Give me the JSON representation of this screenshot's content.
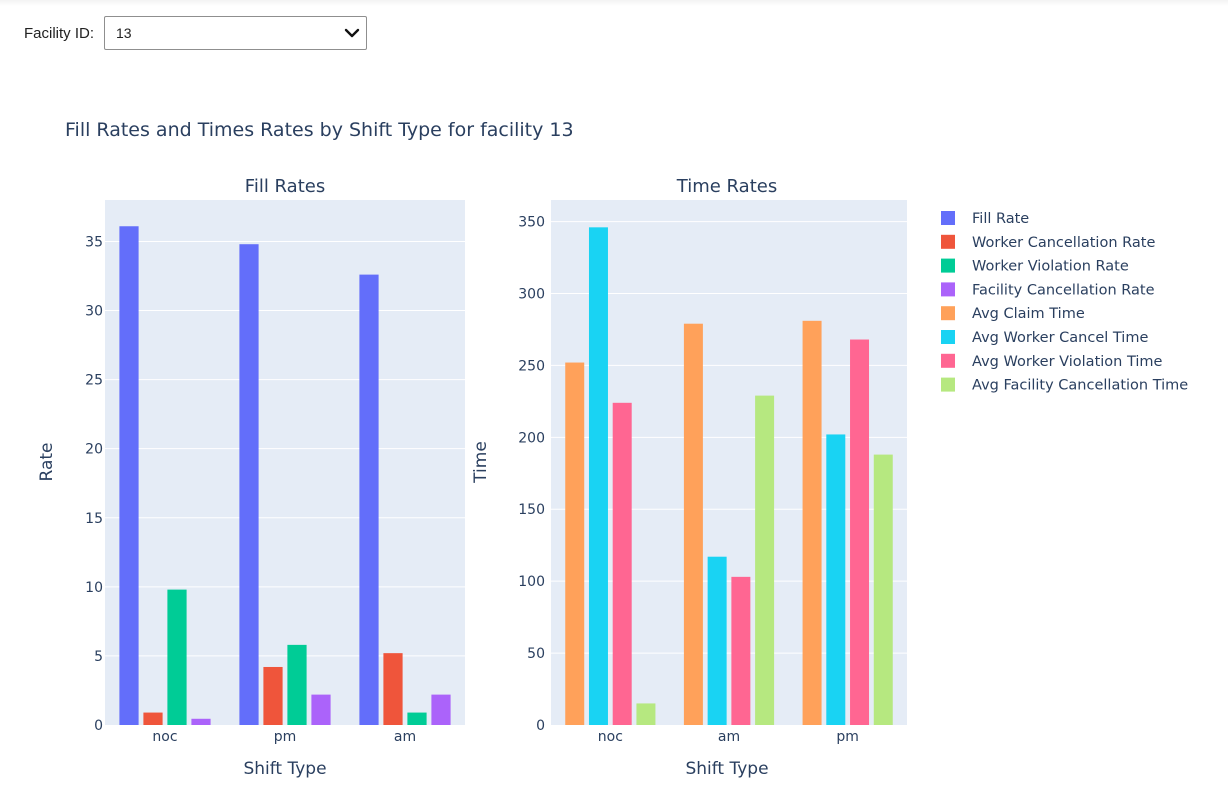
{
  "facility_select": {
    "label": "Facility ID:",
    "value": "13"
  },
  "chart_title": "Fill Rates and Times Rates by Shift Type for facility 13",
  "colors": {
    "Fill Rate": "#636efa",
    "Worker Cancellation Rate": "#EF553B",
    "Worker Violation Rate": "#00cc96",
    "Facility Cancellation Rate": "#ab63fa",
    "Avg Claim Time": "#FFA15A",
    "Avg Worker Cancel Time": "#19d3f3",
    "Avg Worker Violation Time": "#FF6692",
    "Avg Facility Cancellation Time": "#B6E880"
  },
  "legend": [
    "Fill Rate",
    "Worker Cancellation Rate",
    "Worker Violation Rate",
    "Facility Cancellation Rate",
    "Avg Claim Time",
    "Avg Worker Cancel Time",
    "Avg Worker Violation Time",
    "Avg Facility Cancellation Time"
  ],
  "chart_data": [
    {
      "type": "bar",
      "title": "Fill Rates",
      "xlabel": "Shift Type",
      "ylabel": "Rate",
      "categories": [
        "noc",
        "pm",
        "am"
      ],
      "ylim": [
        0,
        38
      ],
      "yticks": [
        0,
        5,
        10,
        15,
        20,
        25,
        30,
        35
      ],
      "series": [
        {
          "name": "Fill Rate",
          "values": [
            36.1,
            34.8,
            32.6
          ]
        },
        {
          "name": "Worker Cancellation Rate",
          "values": [
            0.9,
            4.2,
            5.2
          ]
        },
        {
          "name": "Worker Violation Rate",
          "values": [
            9.8,
            5.8,
            0.9
          ]
        },
        {
          "name": "Facility Cancellation Rate",
          "values": [
            0.45,
            2.2,
            2.2
          ]
        }
      ]
    },
    {
      "type": "bar",
      "title": "Time Rates",
      "xlabel": "Shift Type",
      "ylabel": "Time",
      "categories": [
        "noc",
        "am",
        "pm"
      ],
      "ylim": [
        0,
        365
      ],
      "yticks": [
        0,
        50,
        100,
        150,
        200,
        250,
        300,
        350
      ],
      "series": [
        {
          "name": "Avg Claim Time",
          "values": [
            252,
            279,
            281
          ]
        },
        {
          "name": "Avg Worker Cancel Time",
          "values": [
            346,
            117,
            202
          ]
        },
        {
          "name": "Avg Worker Violation Time",
          "values": [
            224,
            103,
            268
          ]
        },
        {
          "name": "Avg Facility Cancellation Time",
          "values": [
            15,
            229,
            188
          ]
        }
      ]
    }
  ]
}
